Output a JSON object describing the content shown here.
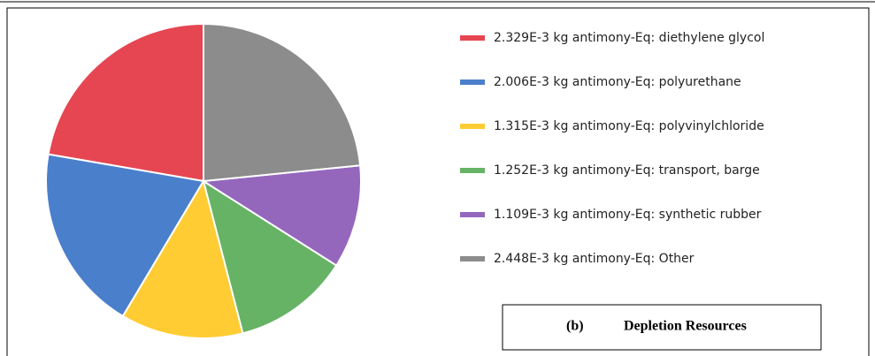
{
  "chart_data": {
    "type": "pie",
    "categories": [
      "2.329E-3 kg antimony-Eq: diethylene glycol",
      "2.006E-3 kg antimony-Eq: polyurethane",
      "1.315E-3 kg antimony-Eq: polyvinylchloride",
      "1.252E-3 kg antimony-Eq: transport, barge",
      "1.109E-3 kg antimony-Eq: synthetic rubber",
      "2.448E-3 kg antimony-Eq: Other"
    ],
    "values": [
      0.002329,
      0.002006,
      0.001315,
      0.001252,
      0.001109,
      0.002448
    ],
    "colors": [
      "#e64552",
      "#4a7fcc",
      "#ffcc33",
      "#66b366",
      "#9467bd",
      "#8c8c8c"
    ],
    "caption": {
      "label": "(b)",
      "text": "Depletion Resources"
    }
  }
}
